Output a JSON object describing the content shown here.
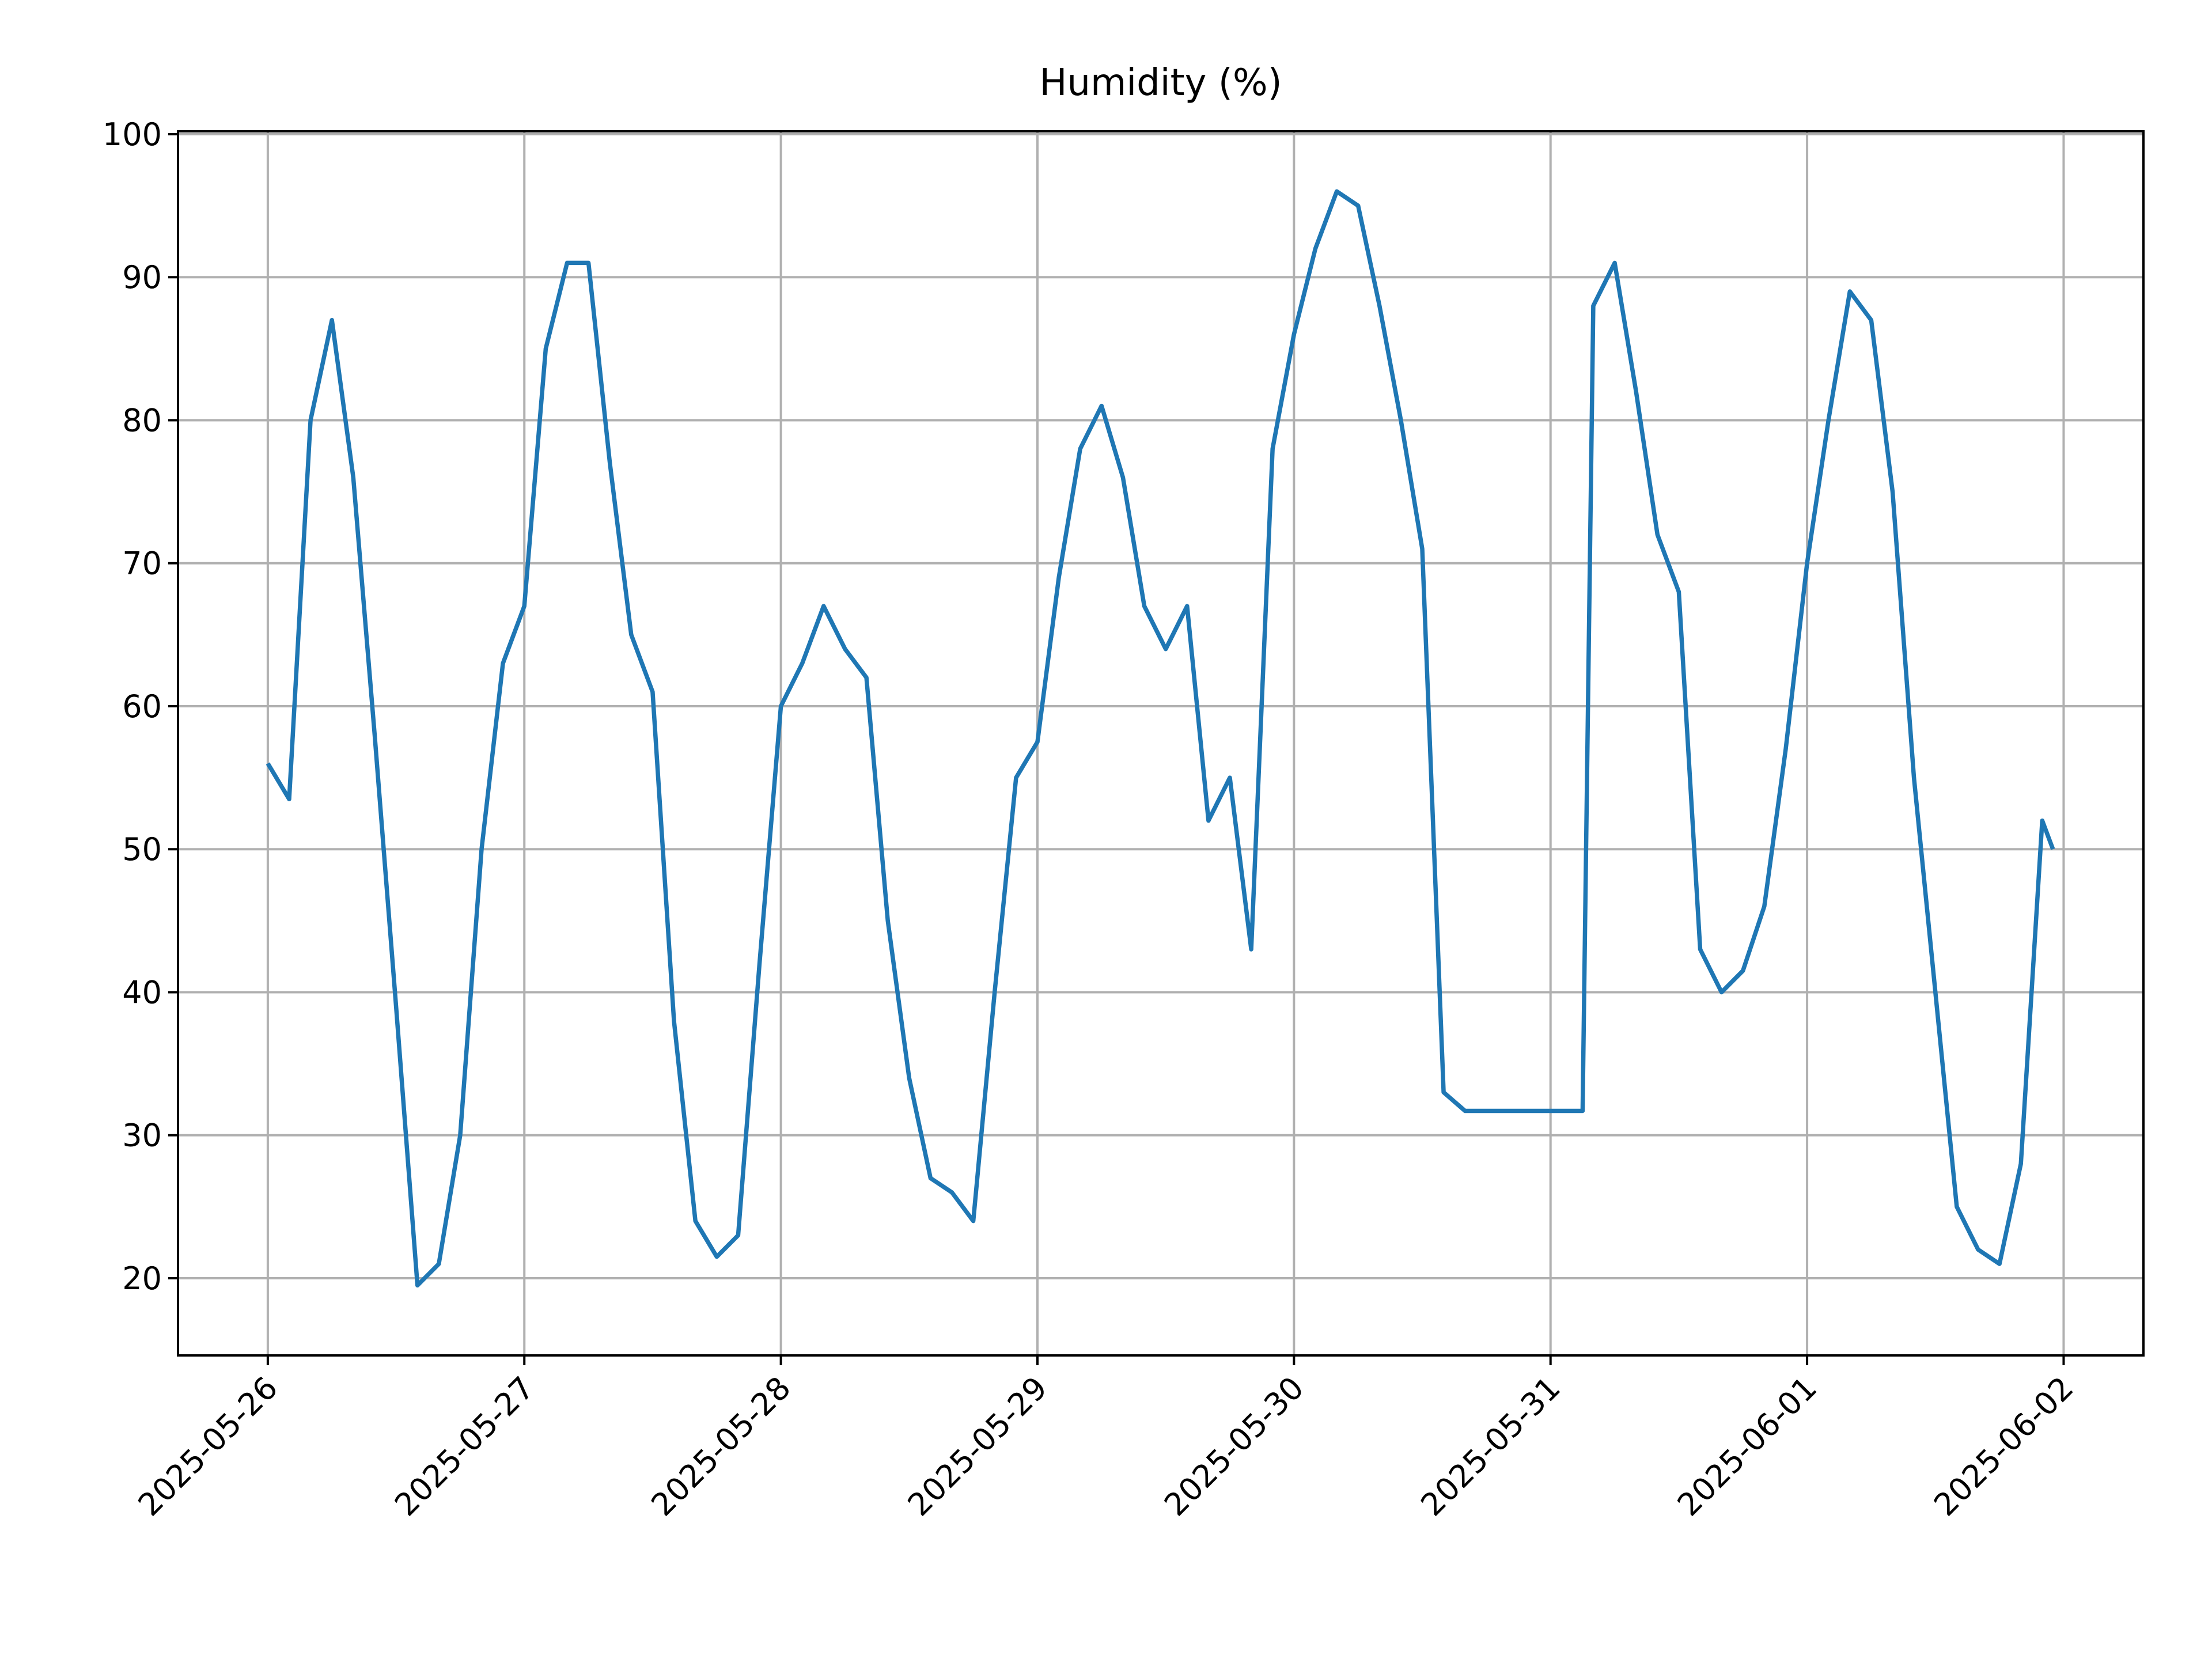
{
  "chart_data": {
    "type": "line",
    "title": "Humidity (%)",
    "x": [
      "2025-05-26 00:00",
      "2025-05-26 02:00",
      "2025-05-26 04:00",
      "2025-05-26 06:00",
      "2025-05-26 08:00",
      "2025-05-26 10:00",
      "2025-05-26 12:00",
      "2025-05-26 14:00",
      "2025-05-26 16:00",
      "2025-05-26 18:00",
      "2025-05-26 20:00",
      "2025-05-26 22:00",
      "2025-05-27 00:00",
      "2025-05-27 02:00",
      "2025-05-27 04:00",
      "2025-05-27 06:00",
      "2025-05-27 08:00",
      "2025-05-27 10:00",
      "2025-05-27 12:00",
      "2025-05-27 14:00",
      "2025-05-27 16:00",
      "2025-05-27 18:00",
      "2025-05-27 20:00",
      "2025-05-27 22:00",
      "2025-05-28 00:00",
      "2025-05-28 02:00",
      "2025-05-28 04:00",
      "2025-05-28 06:00",
      "2025-05-28 08:00",
      "2025-05-28 10:00",
      "2025-05-28 12:00",
      "2025-05-28 14:00",
      "2025-05-28 16:00",
      "2025-05-28 18:00",
      "2025-05-28 20:00",
      "2025-05-28 22:00",
      "2025-05-29 00:00",
      "2025-05-29 02:00",
      "2025-05-29 04:00",
      "2025-05-29 06:00",
      "2025-05-29 08:00",
      "2025-05-29 10:00",
      "2025-05-29 12:00",
      "2025-05-29 14:00",
      "2025-05-29 16:00",
      "2025-05-29 18:00",
      "2025-05-29 20:00",
      "2025-05-29 22:00",
      "2025-05-30 00:00",
      "2025-05-30 02:00",
      "2025-05-30 04:00",
      "2025-05-30 06:00",
      "2025-05-30 08:00",
      "2025-05-30 10:00",
      "2025-05-30 12:00",
      "2025-05-30 14:00",
      "2025-05-30 16:00",
      "2025-05-30 18:00",
      "2025-05-30 20:00",
      "2025-05-30 22:00",
      "2025-05-31 00:00",
      "2025-05-31 02:00",
      "2025-05-31 03:00",
      "2025-05-31 04:00",
      "2025-05-31 06:00",
      "2025-05-31 08:00",
      "2025-05-31 10:00",
      "2025-05-31 12:00",
      "2025-05-31 14:00",
      "2025-05-31 16:00",
      "2025-05-31 18:00",
      "2025-05-31 20:00",
      "2025-05-31 22:00",
      "2025-06-01 00:00",
      "2025-06-01 02:00",
      "2025-06-01 04:00",
      "2025-06-01 06:00",
      "2025-06-01 08:00",
      "2025-06-01 10:00",
      "2025-06-01 12:00",
      "2025-06-01 14:00",
      "2025-06-01 16:00",
      "2025-06-01 18:00",
      "2025-06-01 20:00",
      "2025-06-01 22:00",
      "2025-06-01 23:00"
    ],
    "series": [
      {
        "name": "Humidity",
        "color": "#1f77b4",
        "values": [
          56,
          53.5,
          80,
          87,
          76,
          58,
          39,
          19.5,
          21,
          30,
          50,
          63,
          67,
          85,
          91,
          91,
          77,
          65,
          61,
          38,
          24,
          21.5,
          23,
          42,
          60,
          63,
          67,
          64,
          62,
          45,
          34,
          27,
          26,
          24,
          40,
          55,
          57.5,
          69,
          78,
          81,
          76,
          67,
          64,
          67,
          52,
          55,
          43,
          78,
          86,
          92,
          96,
          95,
          88,
          80,
          71,
          33,
          31.7,
          31.7,
          31.7,
          31.7,
          31.7,
          31.7,
          31.7,
          88,
          91,
          82,
          72,
          68,
          43,
          40,
          41.5,
          46,
          57,
          70,
          80,
          89,
          87,
          75,
          55,
          40,
          25,
          22,
          21,
          28,
          52,
          50
        ]
      }
    ],
    "xlim": [
      "2025-05-25 15:36",
      "2025-06-02 07:28"
    ],
    "xticks": [
      "2025-05-26",
      "2025-05-27",
      "2025-05-28",
      "2025-05-29",
      "2025-05-30",
      "2025-05-31",
      "2025-06-01",
      "2025-06-02"
    ],
    "ylim": [
      14.6,
      100.2
    ],
    "yticks": [
      20,
      30,
      40,
      50,
      60,
      70,
      80,
      90,
      100
    ],
    "grid": true
  }
}
